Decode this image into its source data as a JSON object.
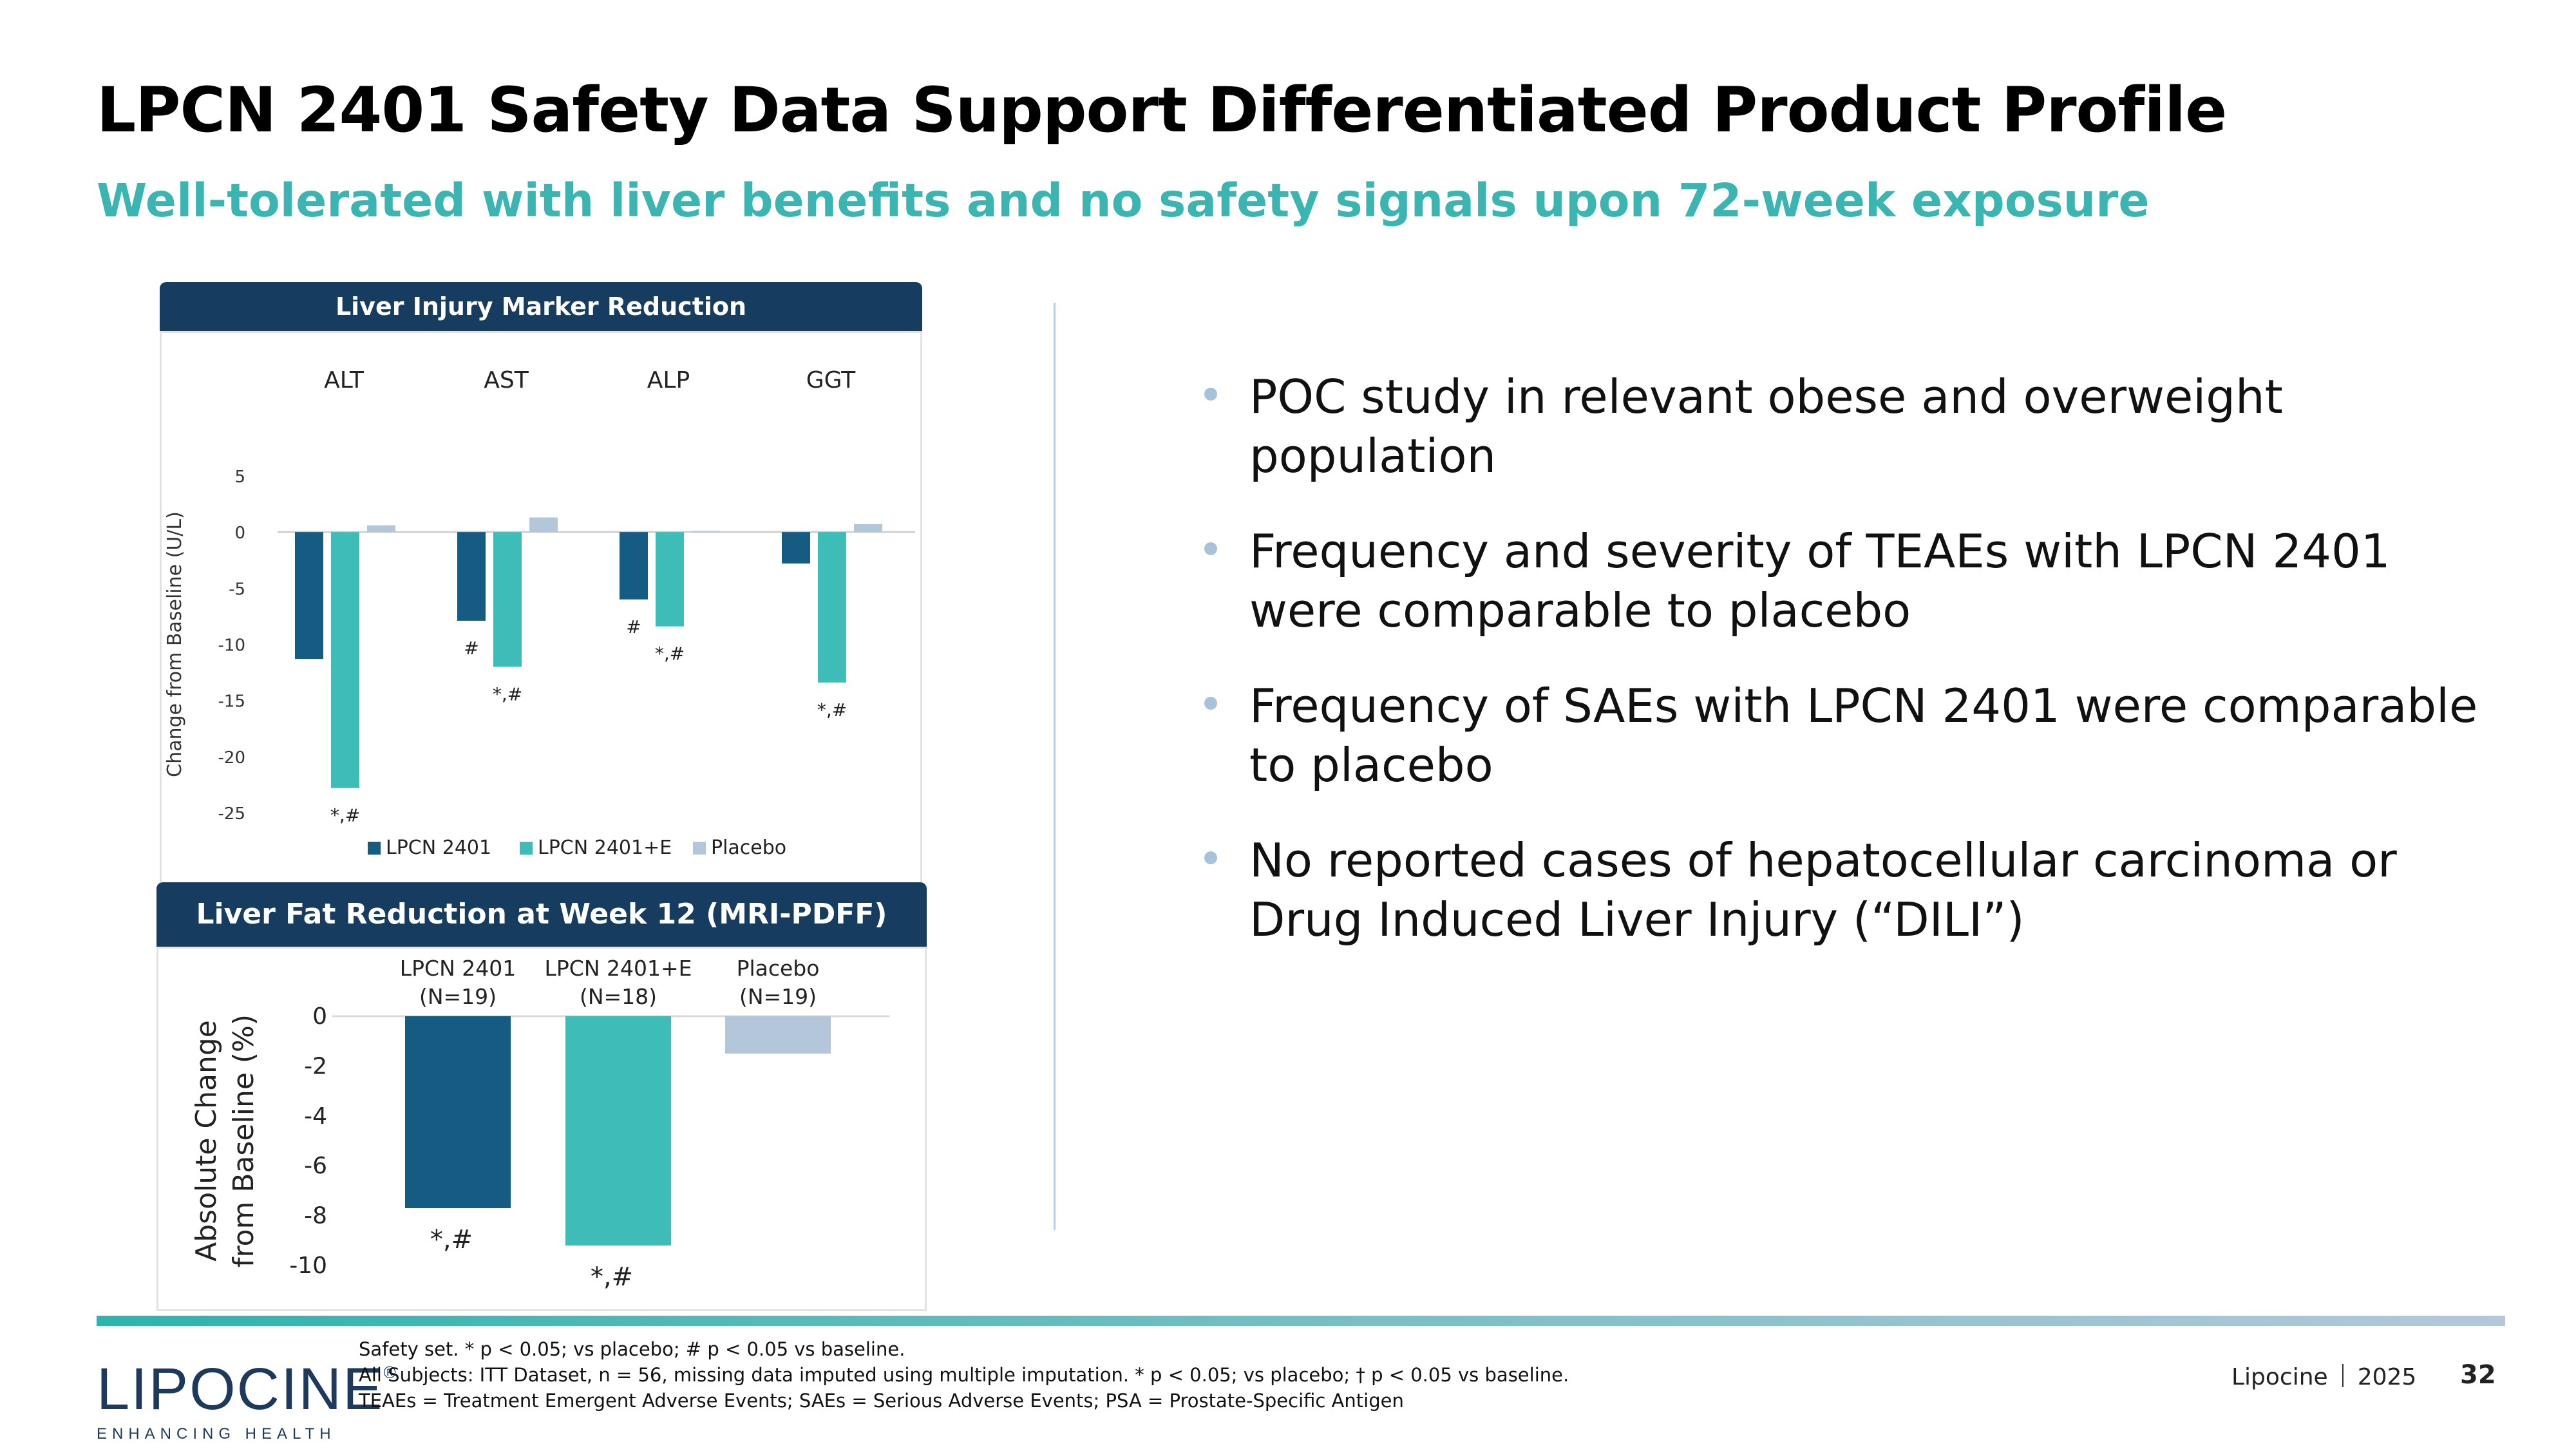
{
  "slide": {
    "title": "LPCN 2401 Safety Data Support Differentiated Product Profile",
    "subtitle": "Well-tolerated with liver benefits and no safety signals upon 72-week exposure",
    "page_number": "32",
    "company": "Lipocine",
    "year": "2025"
  },
  "bullets": [
    "POC study in relevant obese and overweight population",
    "Frequency and severity of TEAEs with LPCN 2401 were comparable to placebo",
    "Frequency of SAEs with LPCN 2401 were comparable to placebo",
    "No reported cases of hepatocellular carcinoma or Drug Induced Liver Injury (“DILI”)"
  ],
  "footnotes": [
    "Safety set. * p < 0.05; vs placebo; # p < 0.05 vs baseline.",
    "All Subjects: ITT Dataset, n = 56, missing data imputed using multiple imputation. * p < 0.05; vs placebo; † p < 0.05 vs baseline.",
    "TEAEs = Treatment Emergent Adverse Events; SAEs = Serious Adverse Events; PSA = Prostate-Specific Antigen"
  ],
  "logo": {
    "name": "LIPOCINE",
    "trademark": "®",
    "tagline": "ENHANCING HEALTH"
  },
  "colors": {
    "lpcn": "#165b82",
    "lpcn_e": "#3dbcb8",
    "placebo": "#b4c7da",
    "header": "#163c5f",
    "accent": "#3ab5b2"
  },
  "chart_data": [
    {
      "type": "bar",
      "title": "Liver Injury Marker Reduction",
      "categories": [
        "ALT",
        "AST",
        "ALP",
        "GGT"
      ],
      "series": [
        {
          "name": "LPCN 2401",
          "values": [
            -11.3,
            -7.9,
            -6.0,
            -2.8
          ],
          "annotations": [
            "",
            "#",
            "#",
            ""
          ]
        },
        {
          "name": "LPCN 2401+E",
          "values": [
            -22.8,
            -12.0,
            -8.4,
            -13.4
          ],
          "annotations": [
            "*,#",
            "*,#",
            "*,#",
            "*,#"
          ]
        },
        {
          "name": "Placebo",
          "values": [
            0.6,
            1.3,
            0.1,
            0.7
          ],
          "annotations": [
            "",
            "",
            "",
            ""
          ]
        }
      ],
      "ylabel": "Change from Baseline (U/L)",
      "xlabel": "",
      "ylim": [
        -25,
        5
      ],
      "yticks": [
        5,
        0,
        -5,
        -10,
        -15,
        -20,
        -25
      ],
      "legend": "bottom"
    },
    {
      "type": "bar",
      "title": "Liver Fat Reduction at Week 12 (MRI-PDFF)",
      "categories": [
        "LPCN 2401",
        "LPCN 2401+E",
        "Placebo"
      ],
      "category_notes": [
        "(N=19)",
        "(N=18)",
        "(N=19)"
      ],
      "values": [
        -7.7,
        -9.2,
        -1.5
      ],
      "annotations": [
        "*,#",
        "*,#",
        ""
      ],
      "ylabel_lines": [
        "Absolute Change",
        "from Baseline  (%)"
      ],
      "xlabel": "",
      "ylim": [
        -10,
        0
      ],
      "yticks": [
        0,
        -2,
        -4,
        -6,
        -8,
        -10
      ],
      "legend": "none"
    }
  ]
}
